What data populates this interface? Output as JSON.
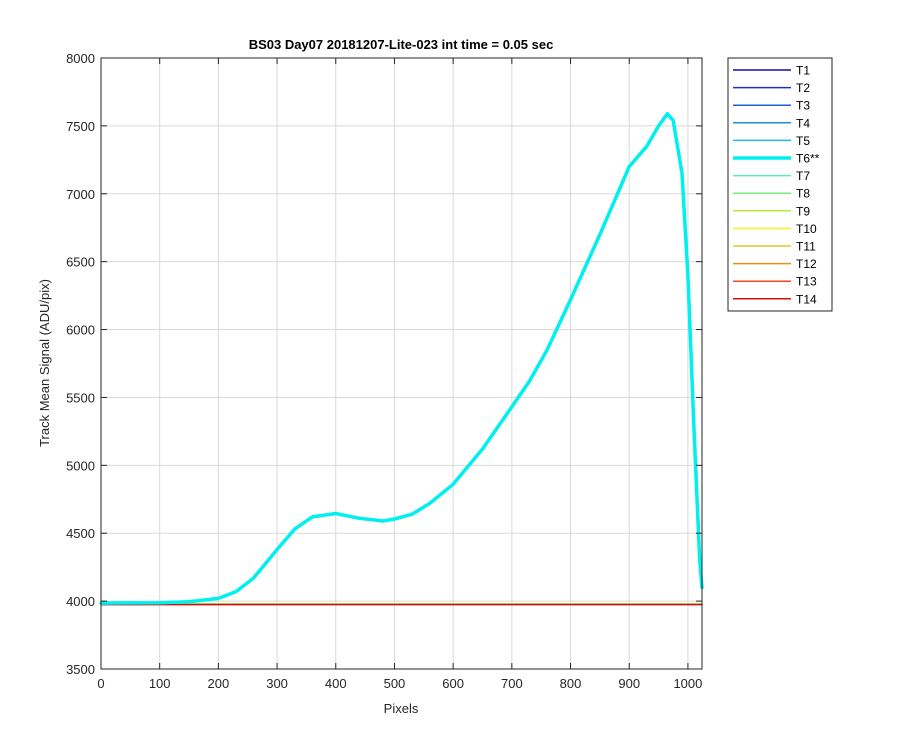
{
  "chart_data": {
    "type": "line",
    "title": "BS03 Day07 20181207-Lite-023 int time = 0.05 sec",
    "xlabel": "Pixels",
    "ylabel": "Track Mean Signal (ADU/pix)",
    "xlim": [
      0,
      1024
    ],
    "ylim": [
      3500,
      8000
    ],
    "xticks": [
      0,
      100,
      200,
      300,
      400,
      500,
      600,
      700,
      800,
      900,
      1000
    ],
    "yticks": [
      3500,
      4000,
      4500,
      5000,
      5500,
      6000,
      6500,
      7000,
      7500,
      8000
    ],
    "grid": true,
    "legend_position": "outside-top-right",
    "series": [
      {
        "name": "T1",
        "color": "#1010a0",
        "highlight": false,
        "x": [
          0,
          1024
        ],
        "y": [
          3975,
          3975
        ]
      },
      {
        "name": "T2",
        "color": "#1a2ec8",
        "highlight": false,
        "x": [
          0,
          1024
        ],
        "y": [
          3975,
          3975
        ]
      },
      {
        "name": "T3",
        "color": "#1f5fd8",
        "highlight": false,
        "x": [
          0,
          1024
        ],
        "y": [
          3976,
          3976
        ]
      },
      {
        "name": "T4",
        "color": "#1f8ce0",
        "highlight": false,
        "x": [
          0,
          1024
        ],
        "y": [
          3977,
          3977
        ]
      },
      {
        "name": "T5",
        "color": "#22b8ea",
        "highlight": false,
        "x": [
          0,
          1024
        ],
        "y": [
          3979,
          3979
        ]
      },
      {
        "name": "T6**",
        "color": "#00f0f0",
        "highlight": true,
        "x": [
          0,
          100,
          150,
          200,
          230,
          260,
          300,
          330,
          360,
          400,
          440,
          480,
          500,
          530,
          560,
          600,
          650,
          700,
          730,
          760,
          800,
          850,
          880,
          900,
          930,
          950,
          965,
          975,
          990,
          1000,
          1010,
          1020,
          1024
        ],
        "y": [
          3985,
          3988,
          3995,
          4020,
          4070,
          4170,
          4380,
          4530,
          4620,
          4645,
          4610,
          4590,
          4605,
          4640,
          4720,
          4860,
          5120,
          5430,
          5620,
          5850,
          6220,
          6700,
          7000,
          7200,
          7350,
          7500,
          7590,
          7540,
          7150,
          6400,
          5300,
          4300,
          4100
        ]
      },
      {
        "name": "T7",
        "color": "#60e6c0",
        "highlight": false,
        "x": [
          0,
          1024
        ],
        "y": [
          3982,
          3982
        ]
      },
      {
        "name": "T8",
        "color": "#7ae87a",
        "highlight": false,
        "x": [
          0,
          1024
        ],
        "y": [
          3981,
          3981
        ]
      },
      {
        "name": "T9",
        "color": "#b5ec3c",
        "highlight": false,
        "x": [
          0,
          1024
        ],
        "y": [
          3978,
          3978
        ]
      },
      {
        "name": "T10",
        "color": "#f5f51a",
        "highlight": false,
        "x": [
          0,
          1024
        ],
        "y": [
          3977,
          3977
        ]
      },
      {
        "name": "T11",
        "color": "#f0c020",
        "highlight": false,
        "x": [
          0,
          1024
        ],
        "y": [
          3976,
          3976
        ]
      },
      {
        "name": "T12",
        "color": "#f08a1a",
        "highlight": false,
        "x": [
          0,
          1024
        ],
        "y": [
          3975,
          3975
        ]
      },
      {
        "name": "T13",
        "color": "#f04a18",
        "highlight": false,
        "x": [
          0,
          1024
        ],
        "y": [
          3975,
          3975
        ]
      },
      {
        "name": "T14",
        "color": "#d01010",
        "highlight": false,
        "x": [
          0,
          1024
        ],
        "y": [
          3974,
          3974
        ]
      }
    ]
  }
}
